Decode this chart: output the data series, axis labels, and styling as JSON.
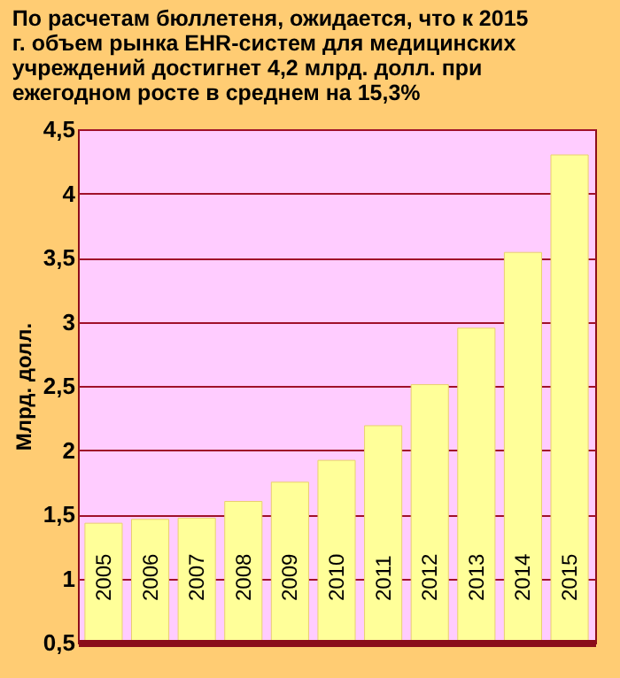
{
  "chart_data": {
    "type": "bar",
    "title": "По расчетам бюллетеня, ожидается, что к 2015 г. объем рынка EHR-систем для медицинских учреждений достигнет 4,2 млрд. долл. при ежегодном росте в среднем на 15,3%",
    "ylabel": "Млрд. долл.",
    "categories": [
      "2005",
      "2006",
      "2007",
      "2008",
      "2009",
      "2010",
      "2011",
      "2012",
      "2013",
      "2014",
      "2015"
    ],
    "values": [
      1.43,
      1.46,
      1.47,
      1.6,
      1.75,
      1.92,
      2.19,
      2.51,
      2.95,
      3.54,
      4.3
    ],
    "color": "#ffff99",
    "ylim": [
      0.5,
      4.5
    ],
    "yticks": [
      {
        "value": 0.5,
        "label": "0,5"
      },
      {
        "value": 1,
        "label": "1"
      },
      {
        "value": 1.5,
        "label": "1,5"
      },
      {
        "value": 2,
        "label": "2"
      },
      {
        "value": 2.5,
        "label": "2,5"
      },
      {
        "value": 3,
        "label": "3"
      },
      {
        "value": 3.5,
        "label": "3,5"
      },
      {
        "value": 4,
        "label": "4"
      },
      {
        "value": 4.5,
        "label": "4,5"
      }
    ],
    "grid": "y"
  }
}
